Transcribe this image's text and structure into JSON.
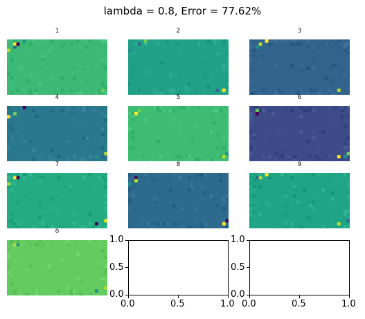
{
  "title": "lambda = 0.8, Error = 77.62%",
  "chart_data": {
    "type": "heatmap",
    "title": "lambda = 0.8, Error = 77.62%",
    "colormap": "viridis",
    "grid_shape": [
      18,
      32
    ],
    "panels": [
      {
        "label": "1",
        "base_color": "#3dba75",
        "row": 0,
        "col": 0
      },
      {
        "label": "2",
        "base_color": "#22a189",
        "row": 0,
        "col": 1
      },
      {
        "label": "3",
        "base_color": "#32638d",
        "row": 0,
        "col": 2
      },
      {
        "label": "4",
        "base_color": "#29788e",
        "row": 1,
        "col": 0
      },
      {
        "label": "5",
        "base_color": "#3fbc73",
        "row": 1,
        "col": 1
      },
      {
        "label": "6",
        "base_color": "#3e4b89",
        "row": 1,
        "col": 2
      },
      {
        "label": "7",
        "base_color": "#25ab82",
        "row": 2,
        "col": 0
      },
      {
        "label": "8",
        "base_color": "#2e6a8e",
        "row": 2,
        "col": 1
      },
      {
        "label": "9",
        "base_color": "#20a486",
        "row": 2,
        "col": 2
      },
      {
        "label": "0",
        "base_color": "#63cb5f",
        "row": 3,
        "col": 0
      }
    ],
    "empty_axes": [
      {
        "row": 3,
        "col": 1,
        "xlim": [
          0,
          1
        ],
        "ylim": [
          0,
          1
        ],
        "xticks": [
          "0.0",
          "0.5",
          "1.0"
        ],
        "yticks": [
          "0.0",
          "0.5",
          "1.0"
        ]
      },
      {
        "row": 3,
        "col": 2,
        "xlim": [
          0,
          1
        ],
        "ylim": [
          0,
          1
        ],
        "xticks": [
          "0.0",
          "0.5",
          "1.0"
        ],
        "yticks": [
          "0.0",
          "0.5",
          "1.0"
        ]
      }
    ]
  }
}
